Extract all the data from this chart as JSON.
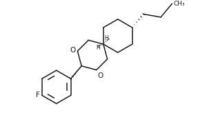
{
  "background_color": "#ffffff",
  "line_color": "#1a1a1a",
  "line_width": 1.1,
  "font_size_label": 6.5,
  "font_size_ch3": 6.5,
  "font_size_h": 5.5,
  "font_size_o": 7.5,
  "font_size_f": 7.5,
  "xlim": [
    -0.5,
    10.5
  ],
  "ylim": [
    -0.5,
    6.5
  ]
}
